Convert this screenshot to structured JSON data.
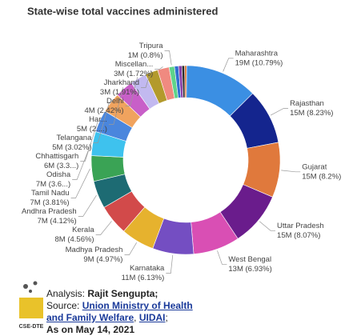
{
  "chart_data": {
    "type": "donut",
    "title": "State-wise total vaccines administered",
    "categories": [
      "Maharashtra",
      "Rajasthan",
      "Gujarat",
      "Uttar Pradesh",
      "West Bengal",
      "Karnataka",
      "Madhya Pradesh",
      "Kerala",
      "Andhra Pradesh",
      "Tamil Nadu",
      "Odisha",
      "Chhattisgarh",
      "Telangana",
      "Har...",
      "Delhi",
      "Jharkhand",
      "Miscellan...",
      "Tripura",
      null,
      null,
      null,
      null
    ],
    "values": [
      10.79,
      8.23,
      8.2,
      8.07,
      6.93,
      6.13,
      4.97,
      4.56,
      4.12,
      3.81,
      3.6,
      3.3,
      3.02,
      2.7,
      2.42,
      1.91,
      1.72,
      0.8,
      0.6,
      0.5,
      0.4,
      0.3
    ],
    "value_labels": [
      "19M (10.79%)",
      "15M (8.23%)",
      "15M (8.2%)",
      "15M (8.07%)",
      "13M (6.93%)",
      "11M (6.13%)",
      "9M (4.97%)",
      "8M (4.56%)",
      "7M (4.12%)",
      "7M (3.81%)",
      "7M (3.6...)",
      "6M (3.3...)",
      "5M (3.02%)",
      "5M (2....)",
      "4M (2.42%)",
      "3M (1.91%)",
      "3M (1.72%)",
      "1M (0.8%)",
      null,
      null,
      null,
      null
    ],
    "colors": [
      "#3b8fe3",
      "#14258e",
      "#e0793c",
      "#6a1c8c",
      "#d94fb4",
      "#744ec2",
      "#e6b22e",
      "#d24a4a",
      "#1d6b73",
      "#3aa355",
      "#3ec2ee",
      "#4a86dd",
      "#f0a35e",
      "#c85fc8",
      "#c2b9f0",
      "#b39a2c",
      "#f08a80",
      "#5fd38a",
      "#2f6fd0",
      "#8a3fa8",
      "#2a2a2a",
      "#e07a3c"
    ]
  },
  "footer": {
    "logo_text": "CSE-DTE",
    "analysis_label": "Analysis:",
    "analyst": "Rajit Sengupta;",
    "source_label": "Source:",
    "source_link_1": "Union Ministry of Health and Family Welfare",
    "separator": ",",
    "source_link_2": "UIDAI",
    "end": ";",
    "as_on": "As on May 14, 2021"
  }
}
